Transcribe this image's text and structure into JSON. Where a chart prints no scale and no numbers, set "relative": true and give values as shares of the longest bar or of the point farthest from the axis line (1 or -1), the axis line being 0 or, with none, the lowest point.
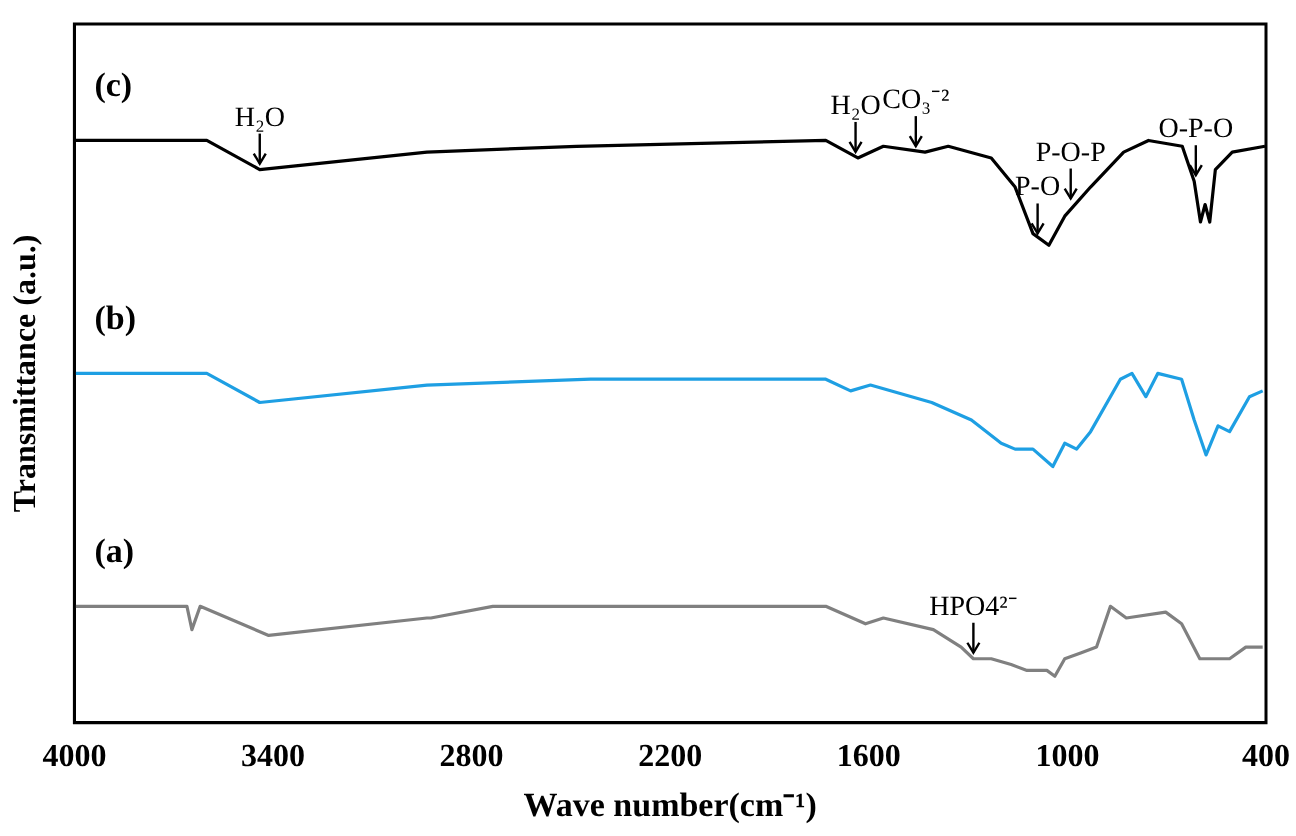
{
  "chart_data": {
    "type": "line",
    "relative": true,
    "xlabel": "Wave number(cm⁻¹)",
    "ylabel": "Transmittance (a.u.)",
    "xlim": [
      4000,
      400
    ],
    "xticks": [
      4000,
      3400,
      2800,
      2200,
      1600,
      1000,
      400
    ],
    "grid": false,
    "legend": false,
    "marker": "none",
    "line_style": "solid",
    "series": [
      {
        "name": "(c)",
        "color": "#000000",
        "x": [
          4000,
          3600,
          3440,
          2935,
          2483,
          1730,
          1633,
          1556,
          1430,
          1360,
          1230,
          1158,
          1104,
          1056,
          1008,
          930,
          830,
          755,
          653,
          617,
          598,
          584,
          570,
          553,
          502,
          403
        ],
        "values": [
          1.0,
          1.0,
          0.95,
          0.98,
          0.99,
          1.0,
          0.97,
          0.99,
          0.98,
          0.99,
          0.97,
          0.92,
          0.84,
          0.82,
          0.87,
          0.92,
          0.98,
          1.0,
          0.99,
          0.93,
          0.86,
          0.89,
          0.86,
          0.95,
          0.98,
          0.99
        ]
      },
      {
        "name": "(b)",
        "color": "#1e9fe3",
        "x": [
          4000,
          3600,
          3440,
          2935,
          2440,
          1730,
          1655,
          1595,
          1410,
          1290,
          1200,
          1158,
          1104,
          1044,
          1008,
          972,
          930,
          840,
          805,
          763,
          727,
          655,
          617,
          581,
          545,
          510,
          450,
          410
        ],
        "values": [
          0.6,
          0.6,
          0.55,
          0.58,
          0.59,
          0.59,
          0.57,
          0.58,
          0.55,
          0.52,
          0.48,
          0.47,
          0.47,
          0.44,
          0.48,
          0.47,
          0.5,
          0.59,
          0.6,
          0.56,
          0.6,
          0.59,
          0.52,
          0.46,
          0.51,
          0.5,
          0.56,
          0.57
        ]
      },
      {
        "name": "(a)",
        "color": "#808080",
        "x": [
          4000,
          3660,
          3645,
          3620,
          3413,
          2935,
          2923,
          2736,
          1730,
          1610,
          1556,
          1405,
          1321,
          1284,
          1230,
          1170,
          1122,
          1062,
          1038,
          1008,
          960,
          912,
          870,
          822,
          703,
          655,
          600,
          550,
          510,
          461,
          410
        ],
        "values": [
          0.2,
          0.2,
          0.16,
          0.2,
          0.15,
          0.18,
          0.18,
          0.2,
          0.2,
          0.17,
          0.18,
          0.16,
          0.13,
          0.11,
          0.11,
          0.1,
          0.09,
          0.09,
          0.08,
          0.11,
          0.12,
          0.13,
          0.2,
          0.18,
          0.19,
          0.17,
          0.11,
          0.11,
          0.11,
          0.13,
          0.13
        ]
      }
    ],
    "annotations": [
      {
        "text": "H₂O",
        "x": 3440,
        "y": 0.95
      },
      {
        "text": "H₂O",
        "x": 1640,
        "y": 0.97
      },
      {
        "text": "CO₃⁻²",
        "x": 1458,
        "y": 0.98
      },
      {
        "text": "P-O",
        "x": 1090,
        "y": 0.83
      },
      {
        "text": "P-O-P",
        "x": 990,
        "y": 0.89
      },
      {
        "text": "O-P-O",
        "x": 612,
        "y": 0.93
      },
      {
        "text": "HPO4²⁻",
        "x": 1284,
        "y": 0.11
      }
    ]
  }
}
